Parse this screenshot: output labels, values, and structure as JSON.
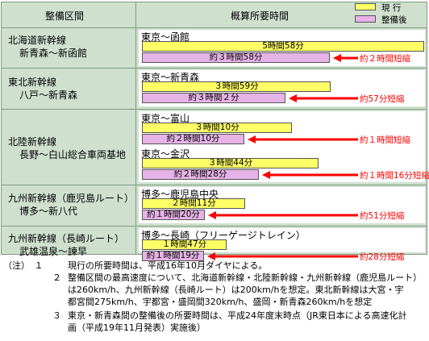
{
  "header": {
    "section": "整備区間",
    "time": "概算所要時間"
  },
  "legend": {
    "current": "現 行",
    "after": "整備後",
    "current_color": "#ffff66",
    "after_color": "#e6b3e6"
  },
  "sections": [
    {
      "lines": [
        "北海道新幹線",
        "新青森～新函館"
      ]
    },
    {
      "lines": [
        "東北新幹線",
        "八戸～新青森"
      ]
    },
    {
      "lines": [
        "北陸新幹線",
        "長野～白山総合車両基地"
      ]
    },
    {
      "lines": [
        "九州新幹線（鹿児島ルート）",
        "博多～新八代"
      ]
    },
    {
      "lines": [
        "九州新幹線（長崎ルート）",
        "武雄温泉～諫早"
      ]
    }
  ],
  "chart_data": {
    "type": "bar",
    "orientation": "horizontal",
    "units": "minutes",
    "series_names": [
      "現 行",
      "整備後"
    ],
    "routes": [
      {
        "name": "東京～函館",
        "current": 358,
        "after": 238,
        "current_label": "5時間58分",
        "after_label": "約３時間58分",
        "saving_label": "約２時間短縮"
      },
      {
        "name": "東京～新青森",
        "current": 239,
        "after": 182,
        "current_label": "３時間59分",
        "after_label": "約３時間２分",
        "saving_label": "約57分短縮"
      },
      {
        "name": "東京～富山",
        "current": 190,
        "after": 130,
        "current_label": "３時間10分",
        "after_label": "約２時間10分",
        "saving_label": "約１時間短縮"
      },
      {
        "name": "東京～金沢",
        "current": 224,
        "after": 148,
        "current_label": "３時間44分",
        "after_label": "約２時間28分",
        "saving_label": "約１時間16分短縮"
      },
      {
        "name": "博多～鹿児島中央",
        "current": 131,
        "after": 80,
        "current_label": "２時間11分",
        "after_label": "約１時間20分",
        "saving_label": "約51分短縮"
      },
      {
        "name": "博多～長崎（フリーゲージトレイン）",
        "current": 107,
        "after": 79,
        "current_label": "１時間47分",
        "after_label": "約１時間19分",
        "saving_label": "約28分短縮"
      }
    ]
  },
  "notes": [
    {
      "num": "（注）　１",
      "lines": [
        "現行の所要時間は、平成16年10月ダイヤによる。"
      ]
    },
    {
      "num": "２",
      "lines": [
        "整備区間の最高速度について、北海道新幹線・北陸新幹線・九州新幹線（鹿児島ルート）",
        "は260km/h、九州新幹線（長崎ルート）は200km/hを想定。東北新幹線は大宮・宇",
        "都宮間275km/h、宇都宮・盛岡間320km/h、盛岡・新青森260km/hを想定"
      ]
    },
    {
      "num": "３",
      "lines": [
        "東京・新青森間の整備後の所要時間は、平成24年度末時点（JR東日本による高速化計",
        "画（平成19年11月発表）実施後）"
      ]
    }
  ]
}
